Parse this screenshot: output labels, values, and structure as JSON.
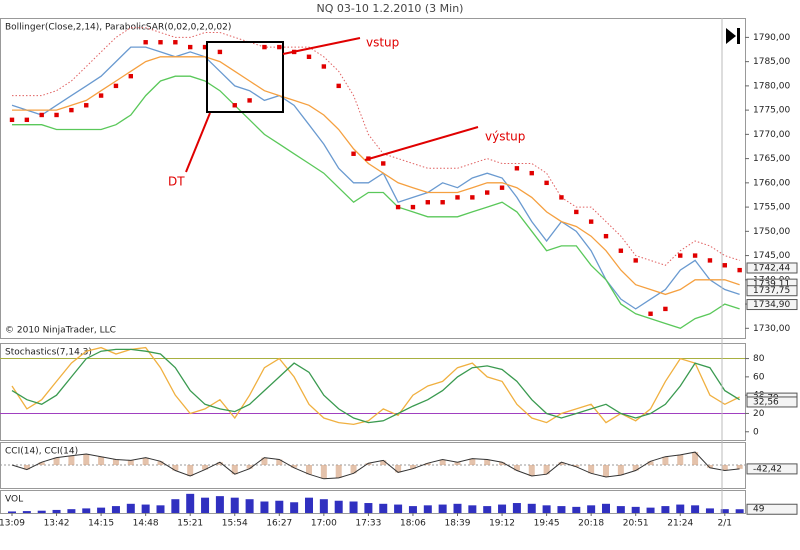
{
  "title": "NQ 03-10  1.2.2010 (3 Min)",
  "chart_data": [
    {
      "type": "line",
      "label": "Bollinger(Close,2,14), ParabolicSAR(0,02,0,2,0,02)",
      "note": "© 2010 NinjaTrader, LLC",
      "ylim": [
        1728,
        1794
      ],
      "yticks": [
        {
          "value": 1730,
          "label": "1730,00"
        },
        {
          "value": 1735,
          "label": "1735,00"
        },
        {
          "value": 1740,
          "label": "1740,00"
        },
        {
          "value": 1745,
          "label": "1745,00"
        },
        {
          "value": 1750,
          "label": "1750,00"
        },
        {
          "value": 1755,
          "label": "1755,00"
        },
        {
          "value": 1760,
          "label": "1760,00"
        },
        {
          "value": 1765,
          "label": "1765,00"
        },
        {
          "value": 1770,
          "label": "1770,00"
        },
        {
          "value": 1775,
          "label": "1775,00"
        },
        {
          "value": 1780,
          "label": "1780,00"
        },
        {
          "value": 1785,
          "label": "1785,00"
        },
        {
          "value": 1790,
          "label": "1790,00"
        }
      ],
      "series": [
        {
          "style": "line",
          "color": "#6a9ad0",
          "values": [
            1776,
            1775,
            1774,
            1776,
            1778,
            1780,
            1782,
            1785,
            1788,
            1788,
            1787,
            1786,
            1787,
            1786,
            1783,
            1780,
            1779,
            1777,
            1778,
            1776,
            1772,
            1768,
            1763,
            1760,
            1760,
            1762,
            1756,
            1757,
            1758,
            1760,
            1759,
            1761,
            1762,
            1761,
            1757,
            1752,
            1748,
            1752,
            1750,
            1746,
            1740,
            1736,
            1734,
            1736,
            1738,
            1742,
            1744,
            1740,
            1738,
            1737
          ]
        },
        {
          "style": "dotted",
          "color": "#e06060",
          "values": [
            1778,
            1778,
            1778,
            1779,
            1781,
            1784,
            1787,
            1790,
            1792,
            1792,
            1791,
            1790,
            1790,
            1791,
            1791,
            1790,
            1789,
            1788,
            1788,
            1788,
            1788,
            1786,
            1783,
            1778,
            1770,
            1766,
            1765,
            1764,
            1763,
            1763,
            1763,
            1764,
            1765,
            1764,
            1764,
            1764,
            1762,
            1757,
            1755,
            1755,
            1752,
            1749,
            1745,
            1744,
            1743,
            1746,
            1748,
            1747,
            1745,
            1744
          ]
        },
        {
          "style": "line",
          "color": "#f5a040",
          "values": [
            1775,
            1775,
            1775,
            1775,
            1776,
            1777,
            1779,
            1781,
            1783,
            1785,
            1786,
            1786,
            1786,
            1786,
            1785,
            1783,
            1781,
            1779,
            1778,
            1777,
            1776,
            1774,
            1771,
            1767,
            1764,
            1762,
            1760,
            1759,
            1758,
            1758,
            1758,
            1759,
            1760,
            1760,
            1759,
            1757,
            1754,
            1752,
            1751,
            1749,
            1746,
            1742,
            1739,
            1738,
            1737,
            1738,
            1740,
            1740,
            1740,
            1739
          ]
        },
        {
          "style": "line",
          "color": "#5ac85a",
          "values": [
            1772,
            1772,
            1772,
            1771,
            1771,
            1771,
            1771,
            1772,
            1774,
            1778,
            1781,
            1782,
            1782,
            1781,
            1779,
            1776,
            1773,
            1770,
            1768,
            1766,
            1764,
            1762,
            1759,
            1756,
            1758,
            1758,
            1755,
            1754,
            1753,
            1753,
            1753,
            1754,
            1755,
            1756,
            1754,
            1750,
            1746,
            1747,
            1747,
            1743,
            1740,
            1735,
            1733,
            1732,
            1731,
            1730,
            1732,
            1733,
            1735,
            1734
          ]
        },
        {
          "style": "dots",
          "color": "#e00000",
          "values": [
            1773,
            1773,
            1774,
            1774,
            1775,
            1776,
            1778,
            1780,
            1782,
            1789,
            1789,
            1789,
            1788,
            1788,
            1787,
            1776,
            1777,
            1788,
            1788,
            1787,
            1786,
            1784,
            1780,
            1766,
            1765,
            1764,
            1755,
            1755,
            1756,
            1756,
            1757,
            1757,
            1758,
            1759,
            1763,
            1762,
            1760,
            1757,
            1754,
            1752,
            1749,
            1746,
            1744,
            1733,
            1734,
            1745,
            1745,
            1744,
            1743,
            1742
          ]
        }
      ],
      "markers": [
        {
          "value": 1742.44,
          "label": "1742,44"
        },
        {
          "value": 1739.11,
          "label": "1739,11"
        },
        {
          "value": 1737.75,
          "label": "1737,75"
        },
        {
          "value": 1734.9,
          "label": "1734,90"
        }
      ],
      "annotations": [
        "vstup",
        "výstup",
        "DT"
      ]
    },
    {
      "type": "line",
      "label": "Stochastics(7,14,3)",
      "ylim": [
        -9,
        97
      ],
      "yticks": [
        0,
        20,
        40,
        60,
        80
      ],
      "levels": [
        {
          "value": 80,
          "color": "#a8b040"
        },
        {
          "value": 20,
          "color": "#a040c0"
        }
      ],
      "series": [
        {
          "style": "line",
          "color": "#f0b040",
          "values": [
            50,
            25,
            35,
            55,
            75,
            88,
            92,
            85,
            90,
            92,
            70,
            40,
            20,
            25,
            35,
            15,
            40,
            70,
            80,
            60,
            30,
            15,
            10,
            8,
            12,
            25,
            18,
            40,
            50,
            55,
            70,
            75,
            60,
            55,
            30,
            15,
            10,
            20,
            25,
            30,
            10,
            20,
            12,
            25,
            55,
            80,
            75,
            40,
            30,
            38
          ]
        },
        {
          "style": "line",
          "color": "#3a9a50",
          "values": [
            45,
            35,
            30,
            40,
            60,
            80,
            88,
            90,
            90,
            88,
            85,
            70,
            45,
            30,
            25,
            22,
            30,
            45,
            60,
            75,
            65,
            40,
            25,
            15,
            10,
            12,
            20,
            28,
            35,
            45,
            60,
            70,
            72,
            68,
            55,
            35,
            20,
            15,
            20,
            25,
            30,
            20,
            15,
            20,
            30,
            50,
            75,
            70,
            45,
            35
          ]
        }
      ],
      "markers": [
        {
          "value": 36.79,
          "label": "36,79"
        },
        {
          "value": 32.56,
          "label": "32,56"
        }
      ]
    },
    {
      "type": "line",
      "label": "CCI(14), CCI(14)",
      "ylim": [
        -250,
        250
      ],
      "levels": [
        {
          "value": 0,
          "color": "#999999"
        }
      ],
      "series": [
        {
          "style": "stemline",
          "color": "#333333",
          "stem_color": "#d8a888",
          "values": [
            0,
            -50,
            30,
            80,
            100,
            120,
            90,
            60,
            50,
            80,
            40,
            -60,
            -120,
            -50,
            30,
            -100,
            -40,
            80,
            60,
            -30,
            -100,
            -150,
            -140,
            -90,
            20,
            50,
            -80,
            -40,
            20,
            60,
            30,
            70,
            60,
            30,
            -60,
            -120,
            -100,
            30,
            -20,
            -90,
            -130,
            -110,
            -60,
            40,
            90,
            110,
            140,
            -30,
            -60,
            -42
          ]
        }
      ],
      "markers": [
        {
          "value": -42.42,
          "label": "-42,42"
        }
      ]
    },
    {
      "type": "bar",
      "label": "VOL",
      "ylim": [
        0,
        300
      ],
      "color": "#3030c0",
      "values": [
        20,
        25,
        30,
        40,
        50,
        60,
        70,
        90,
        120,
        110,
        100,
        180,
        250,
        200,
        220,
        200,
        180,
        150,
        160,
        140,
        200,
        180,
        160,
        150,
        130,
        120,
        110,
        90,
        100,
        110,
        120,
        100,
        90,
        110,
        130,
        120,
        100,
        90,
        80,
        100,
        120,
        90,
        80,
        70,
        90,
        110,
        100,
        60,
        50,
        49
      ],
      "markers": [
        {
          "value": 49,
          "label": "49"
        }
      ],
      "categories": [
        "13:09",
        null,
        null,
        "13:42",
        null,
        null,
        "14:15",
        null,
        null,
        "14:48",
        null,
        null,
        "15:21",
        null,
        null,
        "15:54",
        null,
        null,
        "16:27",
        null,
        null,
        "17:00",
        null,
        null,
        "17:33",
        null,
        null,
        "18:06",
        null,
        null,
        "18:39",
        null,
        null,
        "19:12",
        null,
        null,
        "19:45",
        null,
        null,
        "20:18",
        null,
        null,
        "20:51",
        null,
        null,
        "21:24",
        null,
        null,
        "2/1",
        null
      ]
    }
  ]
}
